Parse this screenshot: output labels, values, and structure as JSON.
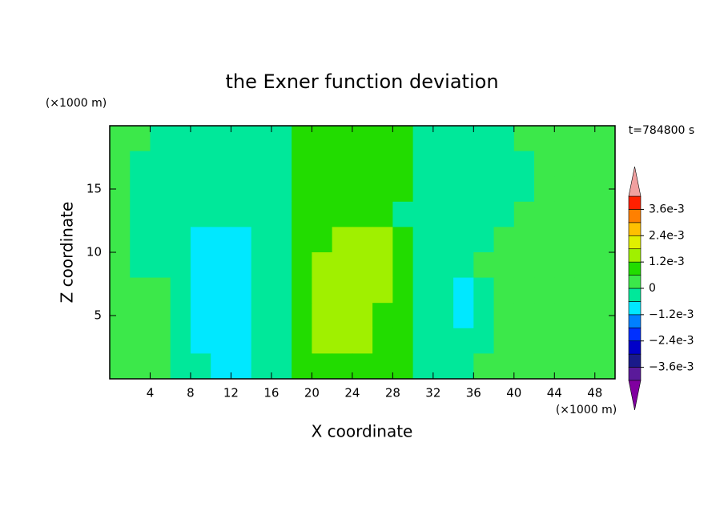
{
  "chart_data": {
    "type": "contour",
    "title": "the Exner function deviation",
    "x_label": "X coordinate",
    "y_label": "Z coordinate",
    "x_unit": "(×1000 m)",
    "y_unit": "(×1000 m)",
    "annotation": "t=784800 s",
    "xlim": [
      0,
      50
    ],
    "ylim": [
      0,
      20
    ],
    "xticks": [
      4,
      8,
      12,
      16,
      20,
      24,
      28,
      32,
      36,
      40,
      44,
      48
    ],
    "yticks": [
      5,
      10,
      15
    ],
    "x": [
      1,
      3,
      5,
      7,
      9,
      11,
      13,
      15,
      17,
      19,
      21,
      23,
      25,
      27,
      29,
      31,
      33,
      35,
      37,
      39,
      41,
      43,
      45,
      47,
      49
    ],
    "z": [
      19,
      17,
      15,
      13,
      11,
      9,
      7,
      5,
      3,
      1
    ],
    "values": [
      [
        0.0003,
        0.0003,
        -0.0003,
        -0.0003,
        -0.0003,
        -0.0003,
        -0.0003,
        -0.0003,
        -0.0003,
        0.0009,
        0.0009,
        0.0009,
        0.0009,
        0.0009,
        0.0009,
        -0.0003,
        -0.0003,
        -0.0003,
        -0.0003,
        -0.0003,
        0.0003,
        0.0003,
        0.0003,
        0.0003,
        0.0003
      ],
      [
        0.0003,
        -0.0003,
        -0.0003,
        -0.0003,
        -0.0003,
        -0.0003,
        -0.0003,
        -0.0003,
        -0.0003,
        0.0009,
        0.0009,
        0.0009,
        0.0009,
        0.0009,
        0.0009,
        -0.0003,
        -0.0003,
        -0.0003,
        -0.0003,
        -0.0003,
        -0.0003,
        0.0003,
        0.0003,
        0.0003,
        0.0003
      ],
      [
        0.0003,
        -0.0003,
        -0.0003,
        -0.0003,
        -0.0003,
        -0.0003,
        -0.0003,
        -0.0003,
        -0.0003,
        0.0009,
        0.0009,
        0.0009,
        0.0009,
        0.0009,
        0.0009,
        -0.0003,
        -0.0003,
        -0.0003,
        -0.0003,
        -0.0003,
        -0.0003,
        0.0003,
        0.0003,
        0.0003,
        0.0003
      ],
      [
        0.0003,
        -0.0003,
        -0.0003,
        -0.0003,
        -0.0003,
        -0.0003,
        -0.0003,
        -0.0003,
        -0.0003,
        0.0009,
        0.0009,
        0.0009,
        0.0009,
        0.0009,
        -0.0003,
        -0.0003,
        -0.0003,
        -0.0003,
        -0.0003,
        -0.0003,
        0.0003,
        0.0003,
        0.0003,
        0.0003,
        0.0003
      ],
      [
        0.0003,
        -0.0003,
        -0.0003,
        -0.0003,
        -0.0009,
        -0.0009,
        -0.0009,
        -0.0003,
        -0.0003,
        0.0009,
        0.0009,
        0.0015,
        0.0015,
        0.0015,
        0.0009,
        -0.0003,
        -0.0003,
        -0.0003,
        -0.0003,
        0.0003,
        0.0003,
        0.0003,
        0.0003,
        0.0003,
        0.0003
      ],
      [
        0.0003,
        -0.0003,
        -0.0003,
        -0.0003,
        -0.0009,
        -0.0009,
        -0.0009,
        -0.0003,
        -0.0003,
        0.0009,
        0.0015,
        0.0015,
        0.0015,
        0.0015,
        0.0009,
        -0.0003,
        -0.0003,
        -0.0003,
        0.0003,
        0.0003,
        0.0003,
        0.0003,
        0.0003,
        0.0003,
        0.0003
      ],
      [
        0.0003,
        0.0003,
        0.0003,
        -0.0003,
        -0.0009,
        -0.0009,
        -0.0009,
        -0.0003,
        -0.0003,
        0.0009,
        0.0015,
        0.0015,
        0.0015,
        0.0015,
        0.0009,
        -0.0003,
        -0.0003,
        -0.0009,
        -0.0003,
        0.0003,
        0.0003,
        0.0003,
        0.0003,
        0.0003,
        0.0003
      ],
      [
        0.0003,
        0.0003,
        0.0003,
        -0.0003,
        -0.0009,
        -0.0009,
        -0.0009,
        -0.0003,
        -0.0003,
        0.0009,
        0.0015,
        0.0015,
        0.0015,
        0.0009,
        0.0009,
        -0.0003,
        -0.0003,
        -0.0009,
        -0.0003,
        0.0003,
        0.0003,
        0.0003,
        0.0003,
        0.0003,
        0.0003
      ],
      [
        0.0003,
        0.0003,
        0.0003,
        -0.0003,
        -0.0009,
        -0.0009,
        -0.0009,
        -0.0003,
        -0.0003,
        0.0009,
        0.0015,
        0.0015,
        0.0015,
        0.0009,
        0.0009,
        -0.0003,
        -0.0003,
        -0.0003,
        -0.0003,
        0.0003,
        0.0003,
        0.0003,
        0.0003,
        0.0003,
        0.0003
      ],
      [
        0.0003,
        0.0003,
        0.0003,
        -0.0003,
        -0.0003,
        -0.0009,
        -0.0009,
        -0.0003,
        -0.0003,
        0.0009,
        0.0009,
        0.0009,
        0.0009,
        0.0009,
        0.0009,
        -0.0003,
        -0.0003,
        -0.0003,
        0.0003,
        0.0003,
        0.0003,
        0.0003,
        0.0003,
        0.0003,
        0.0003
      ]
    ],
    "colorbar": {
      "levels": [
        -0.0042,
        -0.0036,
        -0.003,
        -0.0024,
        -0.0018,
        -0.0012,
        -0.0006,
        0,
        0.0006,
        0.0012,
        0.0018,
        0.0024,
        0.003,
        0.0036,
        0.0042
      ],
      "colors": [
        "#5a1a9a",
        "#1a1a8a",
        "#0000c8",
        "#0030ff",
        "#0080ff",
        "#00e8ff",
        "#00e89a",
        "#3ce84a",
        "#22dc00",
        "#a0f000",
        "#e0f000",
        "#ffc000",
        "#ff8000",
        "#ff2000"
      ],
      "under_color": "#8000a0",
      "over_color": "#f0a0a0",
      "ticks": [
        {
          "value": 0.0036,
          "label": "3.6e-3"
        },
        {
          "value": 0.0024,
          "label": "2.4e-3"
        },
        {
          "value": 0.0012,
          "label": "1.2e-3"
        },
        0,
        {
          "value": -0.0012,
          "label": "−1.2e-3"
        },
        {
          "value": -0.0024,
          "label": "−2.4e-3"
        },
        {
          "value": -0.0036,
          "label": "−3.6e-3"
        }
      ]
    }
  }
}
